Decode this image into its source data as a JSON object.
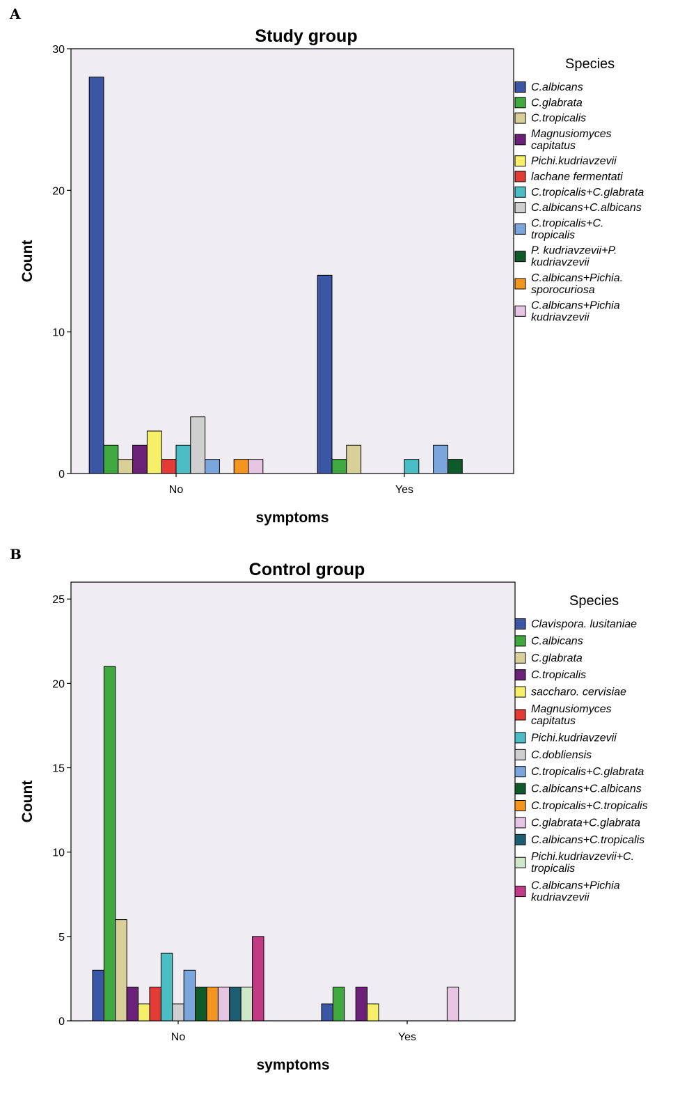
{
  "chart_data": [
    {
      "panel": "A",
      "type": "bar",
      "title": "Study group",
      "xlabel": "symptoms",
      "ylabel": "Count",
      "ylim": [
        0,
        30
      ],
      "yticks": [
        0,
        10,
        20,
        30
      ],
      "categories": [
        "No",
        "Yes"
      ],
      "legend_title": "Species",
      "legend_position": "right",
      "grid": false,
      "series": [
        {
          "name": [
            "C.albicans"
          ],
          "color": "#3a56a5",
          "values": [
            28,
            14
          ]
        },
        {
          "name": [
            "C.glabrata"
          ],
          "color": "#3fa83f",
          "values": [
            2,
            1
          ]
        },
        {
          "name": [
            "C.tropicalis"
          ],
          "color": "#d8cf99",
          "values": [
            1,
            2
          ]
        },
        {
          "name": [
            "Magnusiomyces",
            "capitatus"
          ],
          "color": "#6b2178",
          "values": [
            2,
            0
          ]
        },
        {
          "name": [
            "Pichi.kudriavzevii"
          ],
          "color": "#f5ef6a",
          "values": [
            3,
            0
          ]
        },
        {
          "name": [
            "lachane fermentati"
          ],
          "color": "#e33b35",
          "values": [
            1,
            0
          ]
        },
        {
          "name": [
            "C.tropicalis+C.glabrata"
          ],
          "color": "#4bbdc4",
          "values": [
            2,
            1
          ]
        },
        {
          "name": [
            "C.albicans+C.albicans"
          ],
          "color": "#cfcfcf",
          "values": [
            4,
            0
          ]
        },
        {
          "name": [
            "C.tropicalis+C.",
            "tropicalis"
          ],
          "color": "#7aa6dd",
          "values": [
            1,
            2
          ]
        },
        {
          "name": [
            "P. kudriavzevii+P.",
            "kudriavzevii"
          ],
          "color": "#0f5a2b",
          "values": [
            0,
            1
          ]
        },
        {
          "name": [
            "C.albicans+Pichia.",
            "sporocuriosa"
          ],
          "color": "#f3951f",
          "values": [
            1,
            0
          ]
        },
        {
          "name": [
            "C.albicans+Pichia",
            "kudriavzevii"
          ],
          "color": "#e5c5e2",
          "values": [
            1,
            0
          ]
        }
      ]
    },
    {
      "panel": "B",
      "type": "bar",
      "title": "Control group",
      "xlabel": "symptoms",
      "ylabel": "Count",
      "ylim": [
        0,
        26
      ],
      "yticks": [
        0,
        5,
        10,
        15,
        20,
        25
      ],
      "categories": [
        "No",
        "Yes"
      ],
      "legend_title": "Species",
      "legend_position": "right",
      "grid": false,
      "series": [
        {
          "name": [
            "Clavispora. lusitaniae"
          ],
          "color": "#3a56a5",
          "values": [
            3,
            1
          ]
        },
        {
          "name": [
            "C.albicans"
          ],
          "color": "#3fa83f",
          "values": [
            21,
            2
          ]
        },
        {
          "name": [
            "C.glabrata"
          ],
          "color": "#d8cf99",
          "values": [
            6,
            0
          ]
        },
        {
          "name": [
            "C.tropicalis"
          ],
          "color": "#6b2178",
          "values": [
            2,
            2
          ]
        },
        {
          "name": [
            "saccharo. cervisiae"
          ],
          "color": "#f5ef6a",
          "values": [
            1,
            1
          ]
        },
        {
          "name": [
            "Magnusiomyces",
            "capitatus"
          ],
          "color": "#e33b35",
          "values": [
            2,
            0
          ]
        },
        {
          "name": [
            "Pichi.kudriavzevii"
          ],
          "color": "#4bbdc4",
          "values": [
            4,
            0
          ]
        },
        {
          "name": [
            "C.dobliensis"
          ],
          "color": "#cfcfcf",
          "values": [
            1,
            0
          ]
        },
        {
          "name": [
            "C.tropicalis+C.glabrata"
          ],
          "color": "#7aa6dd",
          "values": [
            3,
            0
          ]
        },
        {
          "name": [
            "C.albicans+C.albicans"
          ],
          "color": "#0f5a2b",
          "values": [
            2,
            0
          ]
        },
        {
          "name": [
            "C.tropicalis+C.tropicalis"
          ],
          "color": "#f3951f",
          "values": [
            2,
            0
          ]
        },
        {
          "name": [
            "C.glabrata+C.glabrata"
          ],
          "color": "#e5c5e2",
          "values": [
            2,
            2
          ]
        },
        {
          "name": [
            "C.albicans+C.tropicalis"
          ],
          "color": "#1c5f73",
          "values": [
            2,
            0
          ]
        },
        {
          "name": [
            "Pichi.kudriavzevii+C.",
            "tropicalis"
          ],
          "color": "#cfe8c9",
          "values": [
            2,
            0
          ]
        },
        {
          "name": [
            "C.albicans+Pichia",
            "kudriavzevii"
          ],
          "color": "#c03a84",
          "values": [
            5,
            0
          ]
        }
      ]
    }
  ]
}
